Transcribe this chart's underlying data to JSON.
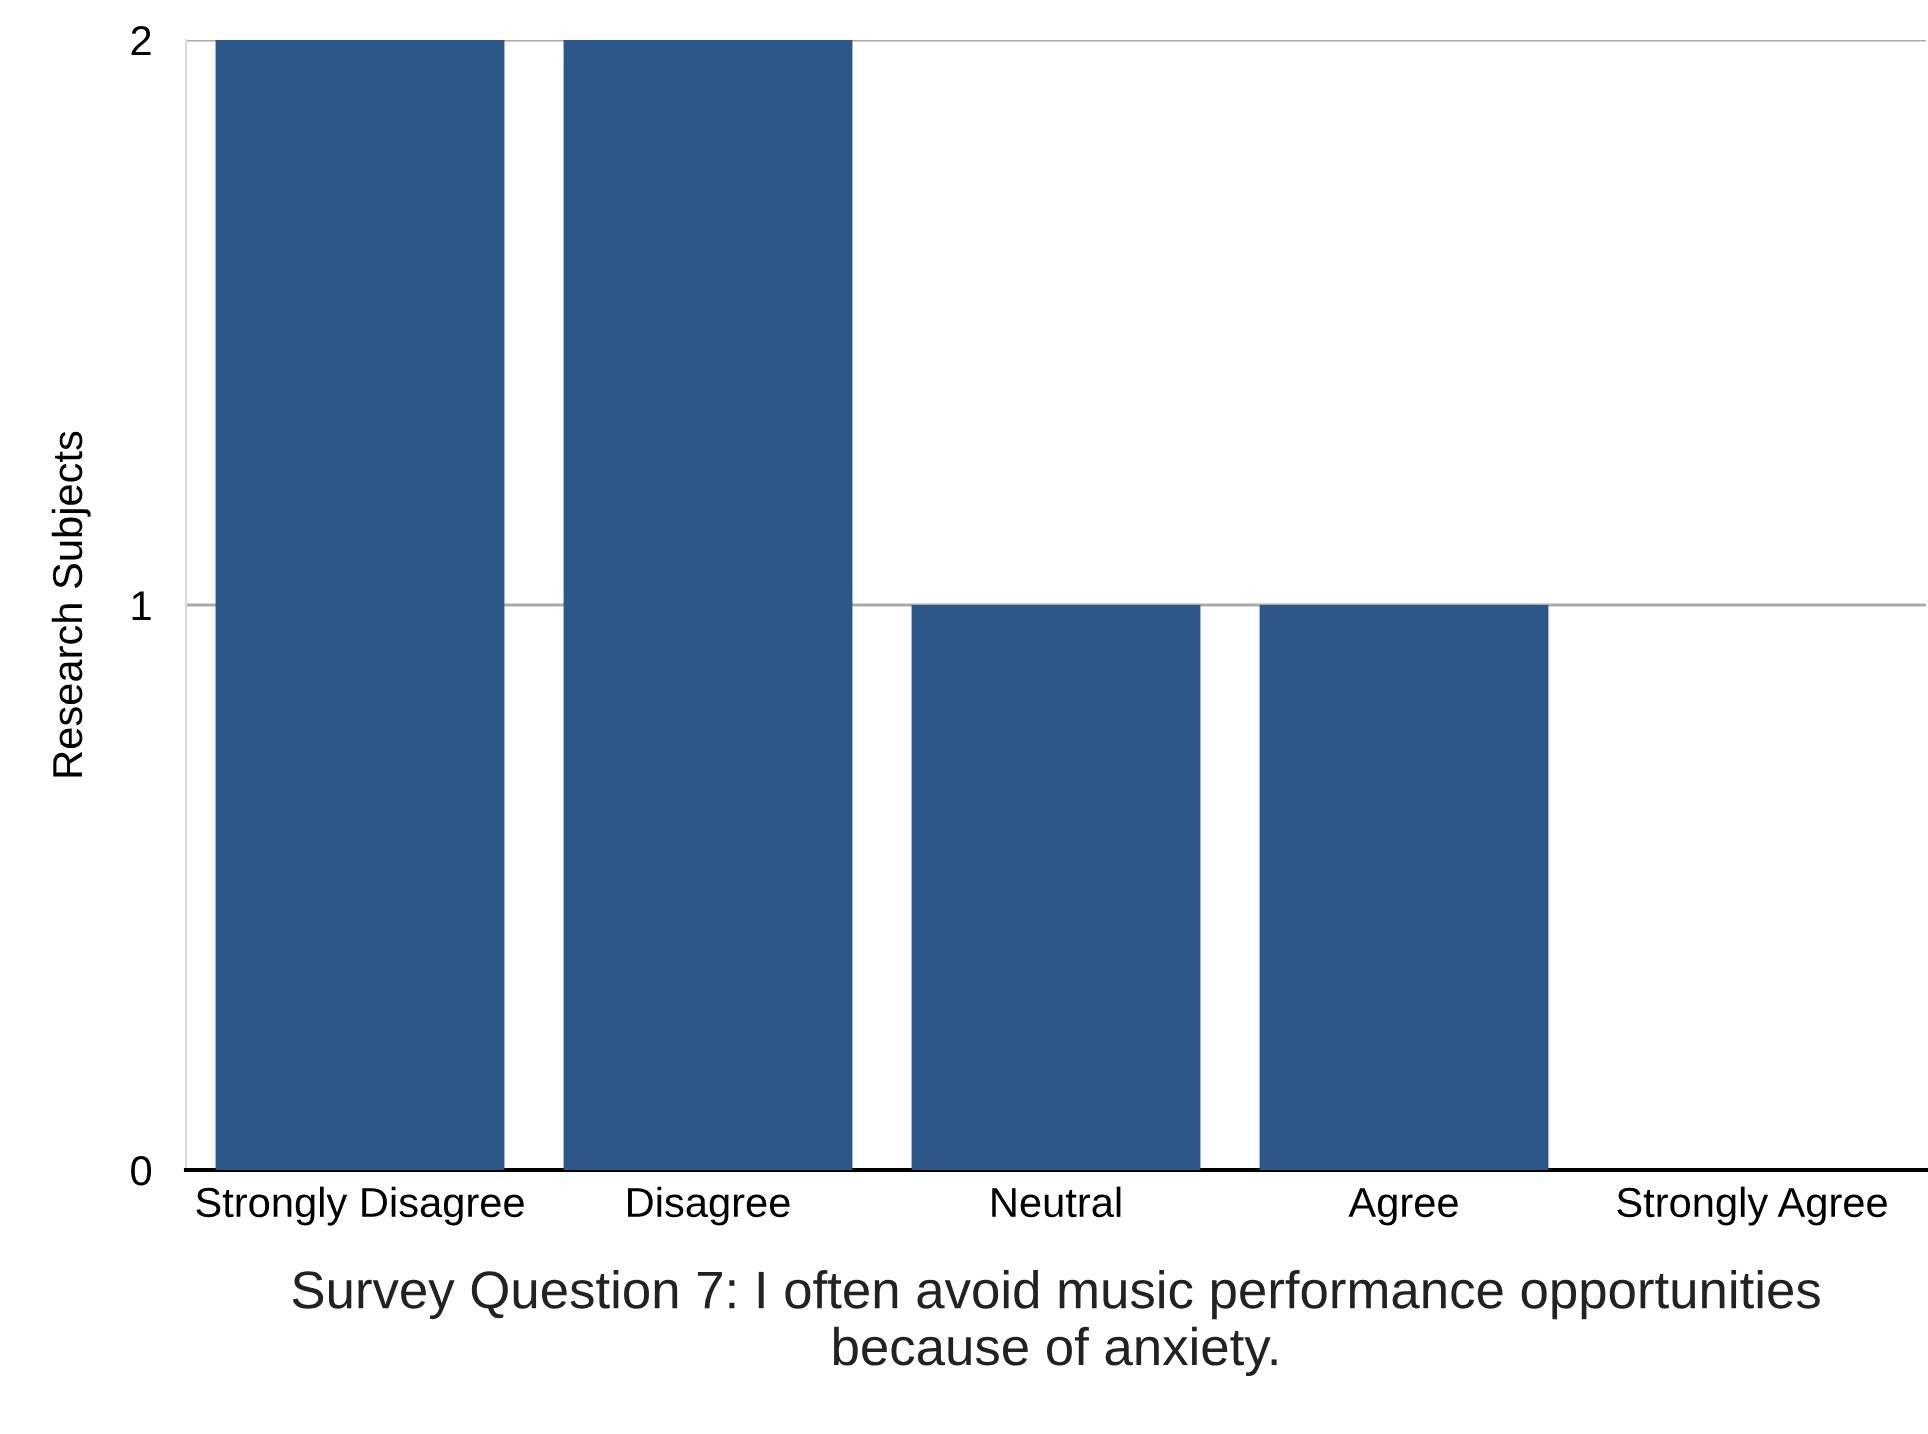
{
  "chart_data": {
    "type": "bar",
    "xlabel": "Survey Question 7: I often avoid music performance opportunities\nbecause of anxiety.",
    "ylabel": "Research Subjects",
    "categories": [
      "Strongly Disagree",
      "Disagree",
      "Neutral",
      "Agree",
      "Strongly Agree"
    ],
    "values": [
      2,
      2,
      1,
      1,
      0
    ],
    "color": "#2d5788",
    "ylim": [
      0,
      2
    ],
    "yticks": [
      0,
      1,
      2
    ],
    "grid": "y"
  }
}
